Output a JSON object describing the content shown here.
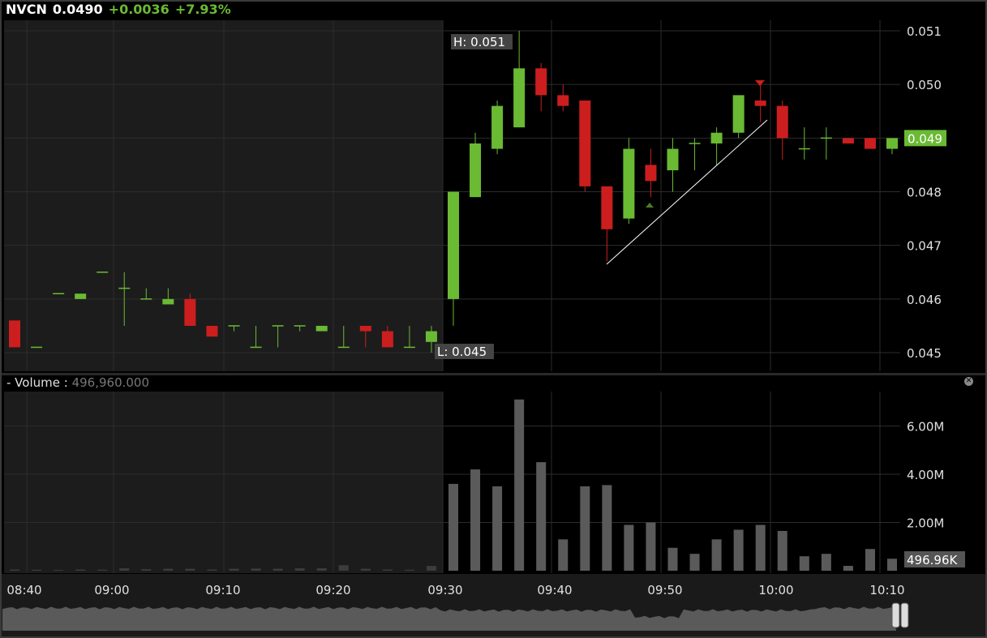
{
  "header": {
    "symbol": "NVCN",
    "last": "0.0490",
    "change": "+0.0036",
    "change_pct": "+7.93%"
  },
  "colors": {
    "up": "#6aba34",
    "down": "#cc1e1e",
    "premarket_bg": "#1c1c1c",
    "bg": "#000000",
    "volume": "#5a5a5a"
  },
  "volume_header": {
    "label": "- Volume :",
    "value": "496,960.000"
  },
  "chart_data": {
    "type": "candlestick",
    "interval": "2m",
    "price_ticks": [
      "0.051",
      "0.050",
      "0.049",
      "0.048",
      "0.047",
      "0.046",
      "0.045"
    ],
    "price_range": [
      0.0445,
      0.0512
    ],
    "last_price_label": "0.049",
    "high_label": "H: 0.051",
    "low_label": "L: 0.045",
    "volume_ticks": [
      "6.00M",
      "4.00M",
      "2.00M"
    ],
    "volume_last_label": "496.96K",
    "time_ticks": [
      "08:40",
      "09:00",
      "09:10",
      "09:20",
      "09:30",
      "09:40",
      "09:50",
      "10:00",
      "10:10"
    ],
    "candles": [
      [
        0.0456,
        0.0456,
        0.0451,
        0.0451,
        0.05
      ],
      [
        0.0451,
        0.0451,
        0.0451,
        0.0451,
        0.04
      ],
      [
        0.0461,
        0.0461,
        0.0461,
        0.0461,
        0.03
      ],
      [
        0.046,
        0.0461,
        0.046,
        0.0461,
        0.05
      ],
      [
        0.0465,
        0.0465,
        0.0465,
        0.0465,
        0.04
      ],
      [
        0.0462,
        0.0465,
        0.0455,
        0.0462,
        0.1
      ],
      [
        0.046,
        0.0462,
        0.046,
        0.046,
        0.06
      ],
      [
        0.0459,
        0.0462,
        0.0459,
        0.046,
        0.08
      ],
      [
        0.046,
        0.0461,
        0.0455,
        0.0455,
        0.08
      ],
      [
        0.0455,
        0.0455,
        0.0453,
        0.0453,
        0.05
      ],
      [
        0.0455,
        0.0455,
        0.0454,
        0.0455,
        0.08
      ],
      [
        0.0451,
        0.0455,
        0.0451,
        0.0451,
        0.09
      ],
      [
        0.0455,
        0.0455,
        0.0451,
        0.0455,
        0.08
      ],
      [
        0.0455,
        0.0455,
        0.0454,
        0.0455,
        0.1
      ],
      [
        0.0454,
        0.0455,
        0.0454,
        0.0455,
        0.1
      ],
      [
        0.0451,
        0.0455,
        0.0451,
        0.0451,
        0.23
      ],
      [
        0.0455,
        0.0455,
        0.0451,
        0.0454,
        0.08
      ],
      [
        0.0454,
        0.0455,
        0.0451,
        0.0451,
        0.05
      ],
      [
        0.0451,
        0.0455,
        0.0451,
        0.0451,
        0.04
      ],
      [
        0.0452,
        0.0455,
        0.045,
        0.0454,
        0.2
      ],
      [
        0.046,
        0.048,
        0.0455,
        0.048,
        3.6
      ],
      [
        0.0479,
        0.0491,
        0.0479,
        0.0489,
        4.2
      ],
      [
        0.0488,
        0.0497,
        0.0487,
        0.0496,
        3.5
      ],
      [
        0.0492,
        0.051,
        0.0492,
        0.0503,
        7.1
      ],
      [
        0.0503,
        0.0504,
        0.0495,
        0.0498,
        4.5
      ],
      [
        0.0498,
        0.05,
        0.0495,
        0.0496,
        1.3
      ],
      [
        0.0497,
        0.0497,
        0.048,
        0.0481,
        3.5
      ],
      [
        0.0481,
        0.0481,
        0.0467,
        0.0473,
        3.55
      ],
      [
        0.0475,
        0.049,
        0.0474,
        0.0488,
        1.9
      ],
      [
        0.0485,
        0.0488,
        0.0479,
        0.0482,
        2.0
      ],
      [
        0.0484,
        0.049,
        0.048,
        0.0488,
        0.95
      ],
      [
        0.0489,
        0.049,
        0.0484,
        0.0489,
        0.7
      ],
      [
        0.0489,
        0.0492,
        0.0485,
        0.0491,
        1.3
      ],
      [
        0.0491,
        0.0498,
        0.049,
        0.0498,
        1.7
      ],
      [
        0.0497,
        0.05,
        0.0493,
        0.0496,
        1.9
      ],
      [
        0.0496,
        0.0497,
        0.0486,
        0.049,
        1.65
      ],
      [
        0.0488,
        0.0492,
        0.0486,
        0.0488,
        0.6
      ],
      [
        0.049,
        0.0492,
        0.0486,
        0.049,
        0.7
      ],
      [
        0.049,
        0.049,
        0.0489,
        0.0489,
        0.2
      ],
      [
        0.049,
        0.049,
        0.0488,
        0.0488,
        0.9
      ],
      [
        0.0488,
        0.049,
        0.0487,
        0.049,
        0.497
      ]
    ],
    "candle_fields": [
      "open",
      "high",
      "low",
      "close",
      "volume_millions"
    ],
    "premarket_candles": 20
  }
}
